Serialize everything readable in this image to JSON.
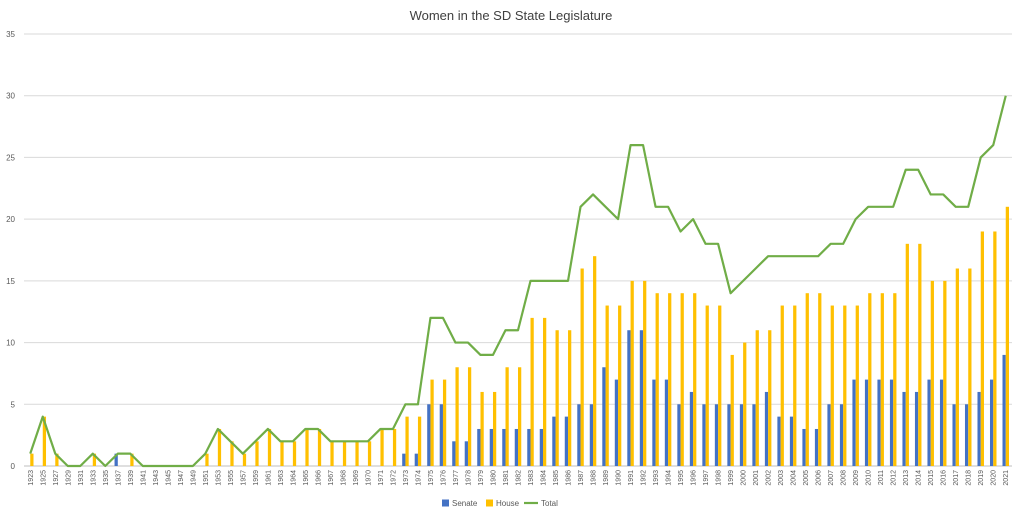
{
  "chart_data": {
    "type": "bar",
    "title": "Women in the SD State Legislature",
    "xlabel": "",
    "ylabel": "",
    "ylim": [
      0,
      35
    ],
    "yticks": [
      0,
      5,
      10,
      15,
      20,
      25,
      30,
      35
    ],
    "grid": true,
    "legend_position": "bottom",
    "categories": [
      "1923",
      "1925",
      "1927",
      "1929",
      "1931",
      "1933",
      "1935",
      "1937",
      "1939",
      "1941",
      "1943",
      "1945",
      "1947",
      "1949",
      "1951",
      "1953",
      "1955",
      "1957",
      "1959",
      "1961",
      "1963",
      "1964",
      "1965",
      "1966",
      "1967",
      "1968",
      "1969",
      "1970",
      "1971",
      "1972",
      "1973",
      "1974",
      "1975",
      "1976",
      "1977",
      "1978",
      "1979",
      "1980",
      "1981",
      "1982",
      "1983",
      "1984",
      "1985",
      "1986",
      "1987",
      "1988",
      "1989",
      "1990",
      "1991",
      "1992",
      "1993",
      "1994",
      "1995",
      "1996",
      "1997",
      "1998",
      "1999",
      "2000",
      "2001",
      "2002",
      "2003",
      "2004",
      "2005",
      "2006",
      "2007",
      "2008",
      "2009",
      "2010",
      "2011",
      "2012",
      "2013",
      "2014",
      "2015",
      "2016",
      "2017",
      "2018",
      "2019",
      "2020",
      "2021"
    ],
    "series": [
      {
        "name": "Senate",
        "type": "bar",
        "color": "#4472c4",
        "values": [
          0,
          0,
          0,
          0,
          0,
          0,
          0,
          1,
          0,
          0,
          0,
          0,
          0,
          0,
          0,
          0,
          0,
          0,
          0,
          0,
          0,
          0,
          0,
          0,
          0,
          0,
          0,
          0,
          0,
          0,
          1,
          1,
          5,
          5,
          2,
          2,
          3,
          3,
          3,
          3,
          3,
          3,
          4,
          4,
          5,
          5,
          8,
          7,
          11,
          11,
          7,
          7,
          5,
          6,
          5,
          5,
          5,
          5,
          5,
          6,
          4,
          4,
          3,
          3,
          5,
          5,
          7,
          7,
          7,
          7,
          6,
          6,
          7,
          7,
          5,
          5,
          6,
          7,
          9
        ]
      },
      {
        "name": "House",
        "type": "bar",
        "color": "#ffc000",
        "values": [
          1,
          4,
          1,
          0,
          0,
          1,
          0,
          0,
          1,
          0,
          0,
          0,
          0,
          0,
          1,
          3,
          2,
          1,
          2,
          3,
          2,
          2,
          3,
          3,
          2,
          2,
          2,
          2,
          3,
          3,
          4,
          4,
          7,
          7,
          8,
          8,
          6,
          6,
          8,
          8,
          12,
          12,
          11,
          11,
          16,
          17,
          13,
          13,
          15,
          15,
          14,
          14,
          14,
          14,
          13,
          13,
          9,
          10,
          11,
          11,
          13,
          13,
          14,
          14,
          13,
          13,
          13,
          14,
          14,
          14,
          18,
          18,
          15,
          15,
          16,
          16,
          19,
          19,
          21
        ]
      },
      {
        "name": "Total",
        "type": "line",
        "color": "#70ad47",
        "values": [
          1,
          4,
          1,
          0,
          0,
          1,
          0,
          1,
          1,
          0,
          0,
          0,
          0,
          0,
          1,
          3,
          2,
          1,
          2,
          3,
          2,
          2,
          3,
          3,
          2,
          2,
          2,
          2,
          3,
          3,
          5,
          5,
          12,
          12,
          10,
          10,
          9,
          9,
          11,
          11,
          15,
          15,
          15,
          15,
          21,
          22,
          21,
          20,
          26,
          26,
          21,
          21,
          19,
          20,
          18,
          18,
          14,
          15,
          16,
          17,
          17,
          17,
          17,
          17,
          18,
          18,
          20,
          21,
          21,
          21,
          24,
          24,
          22,
          22,
          21,
          21,
          25,
          26,
          30
        ]
      }
    ]
  }
}
